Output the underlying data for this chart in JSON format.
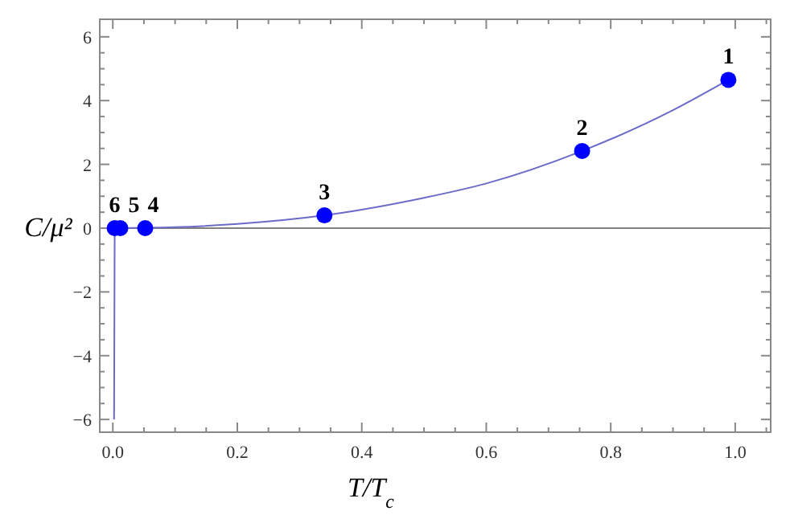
{
  "chart_data": {
    "type": "line",
    "xlabel": "T/T$_{c}$",
    "ylabel": "C/μ²",
    "xlim": [
      -0.021,
      1.057
    ],
    "ylim": [
      -6.4,
      6.55
    ],
    "xticks": [
      {
        "value": 0,
        "label": "0.0"
      },
      {
        "value": 0.05,
        "label": null
      },
      {
        "value": 0.1,
        "label": null
      },
      {
        "value": 0.15,
        "label": null
      },
      0.2,
      {
        "value": 0.25,
        "label": null
      },
      {
        "value": 0.3,
        "label": null
      },
      {
        "value": 0.35,
        "label": null
      },
      0.4,
      {
        "value": 0.45,
        "label": null
      },
      {
        "value": 0.5,
        "label": null
      },
      {
        "value": 0.55,
        "label": null
      },
      0.6,
      {
        "value": 0.65,
        "label": null
      },
      {
        "value": 0.7,
        "label": null
      },
      {
        "value": 0.75,
        "label": null
      },
      0.8,
      {
        "value": 0.85,
        "label": null
      },
      {
        "value": 0.9,
        "label": null
      },
      {
        "value": 0.95,
        "label": null
      },
      {
        "value": 1,
        "label": "1.0"
      },
      {
        "value": 1.05,
        "label": null
      }
    ],
    "yticks": [
      -6,
      {
        "value": -5.5,
        "label": null
      },
      {
        "value": -5,
        "label": null
      },
      {
        "value": -4.5,
        "label": null
      },
      -4,
      {
        "value": -3.5,
        "label": null
      },
      {
        "value": -3,
        "label": null
      },
      {
        "value": -2.5,
        "label": null
      },
      -2,
      {
        "value": -1.5,
        "label": null
      },
      {
        "value": -1,
        "label": null
      },
      {
        "value": -0.5,
        "label": null
      },
      0,
      {
        "value": 0.5,
        "label": null
      },
      {
        "value": 1,
        "label": null
      },
      {
        "value": 1.5,
        "label": null
      },
      2,
      {
        "value": 2.5,
        "label": null
      },
      {
        "value": 3,
        "label": null
      },
      {
        "value": 3.5,
        "label": null
      },
      4,
      {
        "value": 4.5,
        "label": null
      },
      {
        "value": 5,
        "label": null
      },
      {
        "value": 5.5,
        "label": null
      },
      6
    ],
    "grid": false,
    "ref_lines": [
      {
        "axis": "y",
        "value": 0,
        "color": "#808080"
      }
    ],
    "series": [
      {
        "type": "line",
        "color": "#6a6ac8",
        "marker": "none",
        "x": [
          0.002,
          0.003,
          0.05,
          0.1,
          0.2,
          0.34,
          0.5,
          0.6,
          0.754,
          0.9,
          0.989
        ],
        "values": [
          -6,
          0,
          0.01,
          0.03,
          0.13,
          0.4,
          0.95,
          1.4,
          2.42,
          3.7,
          4.65
        ]
      },
      {
        "type": "scatter",
        "color": "#0000ff",
        "marker": "circle",
        "x": [
          0.989,
          0.754,
          0.34,
          0.052,
          0.012,
          0.003
        ],
        "values": [
          4.65,
          2.42,
          0.4,
          0,
          0,
          0
        ]
      }
    ],
    "annotations": [
      {
        "text": "1",
        "x": 0.989,
        "y": 4.65
      },
      {
        "text": "2",
        "x": 0.754,
        "y": 2.42
      },
      {
        "text": "3",
        "x": 0.34,
        "y": 0.4
      },
      {
        "text": "4",
        "x": 0.052,
        "y": 0
      },
      {
        "text": "5",
        "x": 0.012,
        "y": 0
      },
      {
        "text": "6",
        "x": 0.003,
        "y": 0
      }
    ]
  }
}
